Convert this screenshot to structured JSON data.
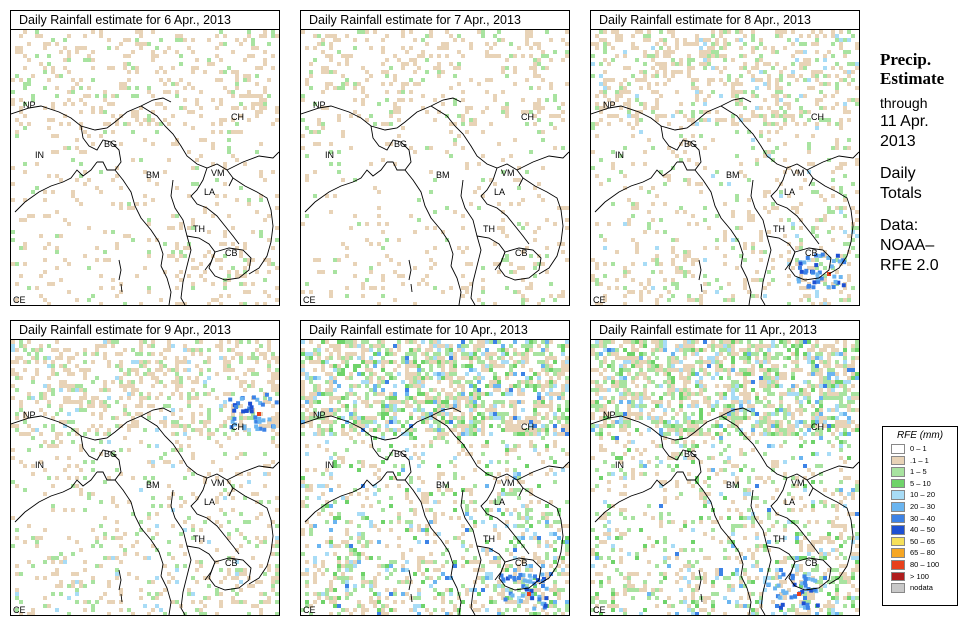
{
  "panels": [
    {
      "title": "Daily Rainfall estimate for  6 Apr., 2013",
      "rain_intensity": "low"
    },
    {
      "title": "Daily Rainfall estimate for  7 Apr., 2013",
      "rain_intensity": "low"
    },
    {
      "title": "Daily Rainfall estimate for  8 Apr., 2013",
      "rain_intensity": "medium"
    },
    {
      "title": "Daily Rainfall estimate for  9 Apr., 2013",
      "rain_intensity": "medium"
    },
    {
      "title": "Daily Rainfall estimate for  10 Apr., 2013",
      "rain_intensity": "high"
    },
    {
      "title": "Daily Rainfall estimate for  11 Apr., 2013",
      "rain_intensity": "high"
    }
  ],
  "country_labels": [
    "NP",
    "CH",
    "IN",
    "BG",
    "BM",
    "VM",
    "LA",
    "TH",
    "CB",
    "CE"
  ],
  "side_panel": {
    "heading_line1": "Precip.",
    "heading_line2": "Estimate",
    "through": "through",
    "date_line1": "11 Apr.",
    "date_line2": "2013",
    "totals_line1": "Daily",
    "totals_line2": "Totals",
    "data_line1": "Data:",
    "data_line2": "NOAA–",
    "data_line3": "RFE 2.0"
  },
  "legend": {
    "title": "RFE (mm)",
    "items": [
      {
        "label": "0 – 1",
        "color": "#ffffff"
      },
      {
        "label": ".1 – 1",
        "color": "#e8d3b7"
      },
      {
        "label": "1 – 5",
        "color": "#a8e3a0"
      },
      {
        "label": "5 – 10",
        "color": "#6fd36a"
      },
      {
        "label": "10 – 20",
        "color": "#a8dcf6"
      },
      {
        "label": "20 – 30",
        "color": "#6bb5f0"
      },
      {
        "label": "30 – 40",
        "color": "#3c82e6"
      },
      {
        "label": "40 – 50",
        "color": "#1e50d2"
      },
      {
        "label": "50 – 65",
        "color": "#f6e05a"
      },
      {
        "label": "65 – 80",
        "color": "#f6a623"
      },
      {
        "label": "80 – 100",
        "color": "#e8401c"
      },
      {
        "label": "> 100",
        "color": "#b01e1e"
      },
      {
        "label": "nodata",
        "color": "#c8c8c8"
      }
    ]
  }
}
